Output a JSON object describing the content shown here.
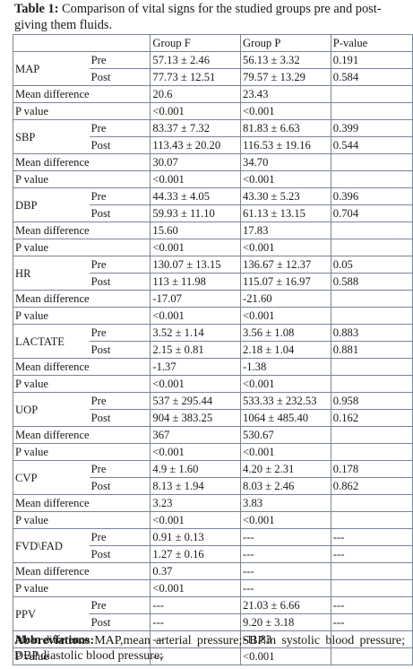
{
  "caption": {
    "label": "Table 1:",
    "text": " Comparison of vital signs for the studied groups pre and post-giving them fluids."
  },
  "headers": [
    "",
    "",
    "Group F",
    "Group P",
    "P-value"
  ],
  "labels": {
    "pre": "Pre",
    "post": "Post",
    "mean_difference": "Mean difference",
    "p_value": "P value"
  },
  "parameters": [
    {
      "name": "MAP",
      "pre": {
        "f": "57.13 ± 2.46",
        "p": "56.13 ± 3.32",
        "pv": "0.191"
      },
      "post": {
        "f": "77.73 ± 12.51",
        "p": "79.57 ± 13.29",
        "pv": "0.584"
      },
      "mean_diff": {
        "f": "20.6",
        "p": "23.43"
      },
      "p_value": {
        "f": "<0.001",
        "p": "<0.001"
      }
    },
    {
      "name": "SBP",
      "pre": {
        "f": "83.37 ± 7.32",
        "p": "81.83 ± 6.63",
        "pv": "0.399"
      },
      "post": {
        "f": "113.43 ± 20.20",
        "p": "116.53 ± 19.16",
        "pv": "0.544"
      },
      "mean_diff": {
        "f": "30.07",
        "p": "34.70"
      },
      "p_value": {
        "f": "<0.001",
        "p": "<0.001"
      }
    },
    {
      "name": "DBP",
      "pre": {
        "f": "44.33 ± 4.05",
        "p": "43.30 ± 5.23",
        "pv": "0.396"
      },
      "post": {
        "f": "59.93 ± 11.10",
        "p": "61.13 ± 13.15",
        "pv": "0.704"
      },
      "mean_diff": {
        "f": "15.60",
        "p": "17.83"
      },
      "p_value": {
        "f": "<0.001",
        "p": "<0.001"
      }
    },
    {
      "name": "HR",
      "pre": {
        "f": "130.07 ± 13.15",
        "p": "136.67 ± 12.37",
        "pv": "0.05"
      },
      "post": {
        "f": "113 ± 11.98",
        "p": "115.07 ± 16.97",
        "pv": "0.588"
      },
      "mean_diff": {
        "f": "-17.07",
        "p": "-21.60"
      },
      "p_value": {
        "f": "<0.001",
        "p": "<0.001"
      }
    },
    {
      "name": "LACTATE",
      "pre": {
        "f": "3.52 ± 1.14",
        "p": "3.56 ± 1.08",
        "pv": "0.883"
      },
      "post": {
        "f": "2.15 ± 0.81",
        "p": "2.18 ± 1.04",
        "pv": "0.881"
      },
      "mean_diff": {
        "f": "-1.37",
        "p": "-1.38"
      },
      "p_value": {
        "f": "<0.001",
        "p": "<0.001"
      }
    },
    {
      "name": "UOP",
      "pre": {
        "f": "537 ± 295.44",
        "p": "533.33 ± 232.53",
        "pv": "0.958"
      },
      "post": {
        "f": "904 ± 383.25",
        "p": "1064 ± 485.40",
        "pv": "0.162"
      },
      "mean_diff": {
        "f": "367",
        "p": "530.67"
      },
      "p_value": {
        "f": "<0.001",
        "p": "<0.001"
      }
    },
    {
      "name": "CVP",
      "pre": {
        "f": "4.9 ± 1.60",
        "p": "4.20 ± 2.31",
        "pv": "0.178"
      },
      "post": {
        "f": "8.13 ± 1.94",
        "p": "8.03 ± 2.46",
        "pv": "0.862"
      },
      "mean_diff": {
        "f": "3.23",
        "p": "3.83"
      },
      "p_value": {
        "f": "<0.001",
        "p": "<0.001"
      }
    },
    {
      "name": "FVD\\FAD",
      "pre": {
        "f": "0.91 ± 0.13",
        "p": "---",
        "pv": "---"
      },
      "post": {
        "f": "1.27 ± 0.16",
        "p": "---",
        "pv": "---"
      },
      "mean_diff": {
        "f": "0.37",
        "p": "---"
      },
      "p_value": {
        "f": "<0.001",
        "p": "---"
      }
    },
    {
      "name": "PPV",
      "pre": {
        "f": "---",
        "p": "21.03 ± 6.66",
        "pv": "---"
      },
      "post": {
        "f": "---",
        "p": "9.20 ± 3.18",
        "pv": "---"
      },
      "mean_diff": {
        "f": "---",
        "p": "-11.83"
      },
      "p_value": {
        "f": "---",
        "p": "<0.001"
      }
    }
  ],
  "footer": {
    "label": "Abbreviations:",
    "text": "MAP,mean arterial pressure;SBP.in systolic blood pressure; DBP.diastolic blood pressure;"
  }
}
